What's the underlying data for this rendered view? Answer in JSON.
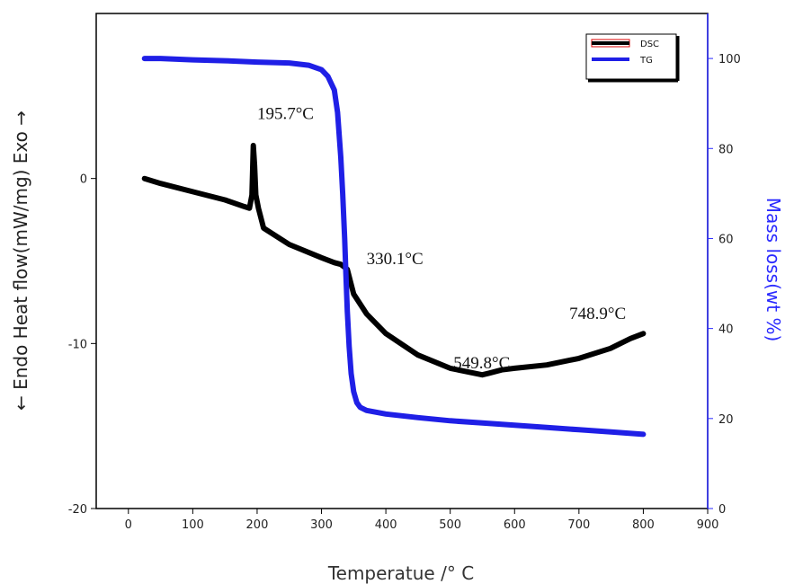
{
  "chart_data": {
    "type": "line",
    "title": "",
    "xlabel": "Temperatue /° C",
    "ylabel_left": "← Endo Heat flow(mW/mg) Exo →",
    "ylabel_right": "Mass loss(wt %)",
    "xlim": [
      -50,
      900
    ],
    "ylim_left": [
      -20,
      10
    ],
    "ylim_right": [
      0,
      110
    ],
    "x_ticks": [
      0,
      100,
      200,
      300,
      400,
      500,
      600,
      700,
      800,
      900
    ],
    "y_left_ticks": [
      -20,
      -10,
      0
    ],
    "y_right_ticks": [
      0,
      20,
      40,
      60,
      80,
      100
    ],
    "grid": false,
    "legend_position": "top-right",
    "colors": {
      "DSC": "#000000",
      "TG": "#1f1fe6",
      "right_axis": "#2a2aff"
    },
    "series": [
      {
        "name": "DSC",
        "axis": "left",
        "x": [
          25,
          50,
          100,
          150,
          180,
          188,
          192,
          194,
          196,
          198,
          202,
          210,
          250,
          300,
          320,
          330,
          340,
          350,
          370,
          400,
          450,
          500,
          549.8,
          560,
          580,
          600,
          650,
          700,
          748.9,
          780,
          800
        ],
        "y": [
          0,
          -0.3,
          -0.8,
          -1.3,
          -1.7,
          -1.8,
          -1.0,
          2.0,
          0.8,
          -1.0,
          -1.8,
          -3.0,
          -4.0,
          -4.8,
          -5.1,
          -5.2,
          -5.5,
          -7.0,
          -8.2,
          -9.4,
          -10.7,
          -11.5,
          -11.9,
          -11.8,
          -11.6,
          -11.5,
          -11.3,
          -10.9,
          -10.3,
          -9.7,
          -9.4
        ]
      },
      {
        "name": "TG",
        "axis": "right",
        "x": [
          25,
          50,
          100,
          150,
          200,
          250,
          280,
          300,
          310,
          320,
          325,
          330,
          333,
          336,
          338,
          340,
          343,
          346,
          350,
          355,
          360,
          370,
          400,
          450,
          500,
          550,
          600,
          650,
          700,
          750,
          800
        ],
        "y": [
          100,
          100,
          99.7,
          99.5,
          99.2,
          99.0,
          98.5,
          97.5,
          96,
          93,
          88,
          78,
          70,
          60,
          52,
          44,
          36,
          30,
          26,
          23.5,
          22.5,
          21.8,
          21.0,
          20.2,
          19.5,
          19.0,
          18.5,
          18.0,
          17.5,
          17.0,
          16.5
        ]
      }
    ],
    "annotations": [
      {
        "text": "195.7°C",
        "x": 200,
        "y": 3.6
      },
      {
        "text": "330.1°C",
        "x": 370,
        "y": -5.2
      },
      {
        "text": "549.8°C",
        "x": 505,
        "y": -11.5
      },
      {
        "text": "748.9°C",
        "x": 685,
        "y": -8.5
      }
    ]
  }
}
